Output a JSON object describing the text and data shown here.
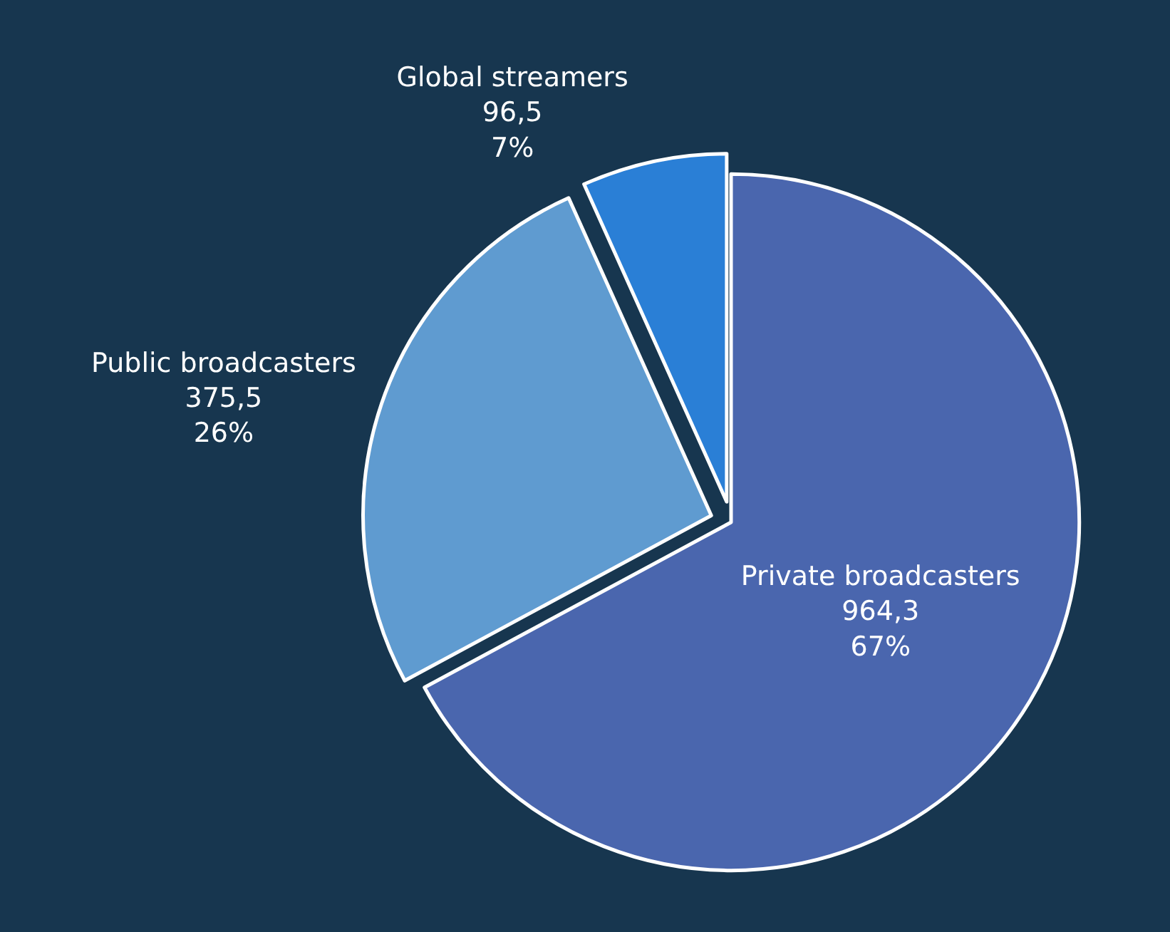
{
  "chart_data": {
    "type": "pie",
    "categories": [
      "Private broadcasters",
      "Public broadcasters",
      "Global streamers"
    ],
    "values": [
      964.3,
      375.5,
      96.5
    ],
    "value_labels": [
      "964,3\n67%",
      "375,5\n26%",
      "96,5\n7%"
    ],
    "colors": [
      "#4a66ae",
      "#5f9bd0",
      "#2a7fd6"
    ],
    "legend": false
  }
}
